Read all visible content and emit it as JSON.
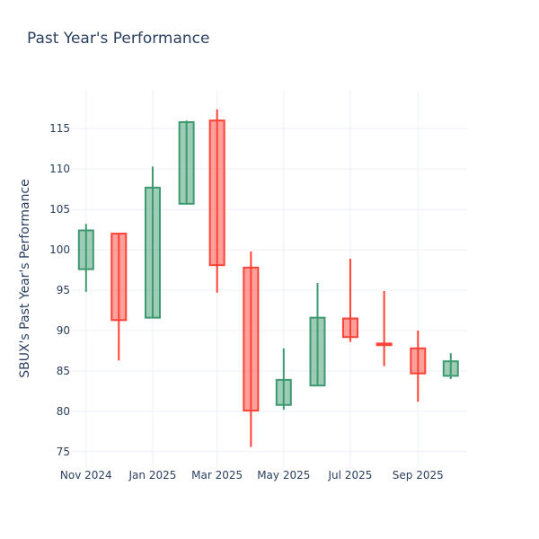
{
  "chart_data": {
    "type": "candlestick",
    "title": "Past Year's Performance",
    "ylabel": "SBUX's Past Year's Performance",
    "xlabel": "",
    "ylim": [
      73.1,
      119.8
    ],
    "xlim": [
      "2024-10-19",
      "2025-10-16"
    ],
    "yticks": [
      75,
      80,
      85,
      90,
      95,
      100,
      105,
      110,
      115
    ],
    "xticks": [
      {
        "date": "2024-11-01",
        "label": "Nov 2024"
      },
      {
        "date": "2025-01-01",
        "label": "Jan 2025"
      },
      {
        "date": "2025-03-01",
        "label": "Mar 2025"
      },
      {
        "date": "2025-05-01",
        "label": "May 2025"
      },
      {
        "date": "2025-07-01",
        "label": "Jul 2025"
      },
      {
        "date": "2025-09-01",
        "label": "Sep 2025"
      }
    ],
    "grid": true,
    "colors": {
      "increasing": "#3D9970",
      "decreasing": "#FF4136"
    },
    "candles": [
      {
        "date": "2024-11-01",
        "open": 97.6,
        "high": 103.2,
        "low": 94.8,
        "close": 102.4
      },
      {
        "date": "2024-12-01",
        "open": 102.0,
        "high": 102.1,
        "low": 86.3,
        "close": 91.3
      },
      {
        "date": "2025-01-01",
        "open": 91.6,
        "high": 110.3,
        "low": 91.5,
        "close": 107.7
      },
      {
        "date": "2025-02-01",
        "open": 105.7,
        "high": 116.0,
        "low": 105.6,
        "close": 115.8
      },
      {
        "date": "2025-03-01",
        "open": 116.0,
        "high": 117.4,
        "low": 94.7,
        "close": 98.1
      },
      {
        "date": "2025-04-01",
        "open": 97.8,
        "high": 99.8,
        "low": 75.6,
        "close": 80.1
      },
      {
        "date": "2025-05-01",
        "open": 80.8,
        "high": 87.8,
        "low": 80.2,
        "close": 83.9
      },
      {
        "date": "2025-06-01",
        "open": 83.2,
        "high": 95.9,
        "low": 83.2,
        "close": 91.6
      },
      {
        "date": "2025-07-01",
        "open": 91.5,
        "high": 98.9,
        "low": 88.6,
        "close": 89.2
      },
      {
        "date": "2025-08-01",
        "open": 88.4,
        "high": 94.9,
        "low": 85.6,
        "close": 88.2
      },
      {
        "date": "2025-09-01",
        "open": 87.8,
        "high": 90.0,
        "low": 81.2,
        "close": 84.7
      },
      {
        "date": "2025-10-01",
        "open": 84.4,
        "high": 87.2,
        "low": 84.0,
        "close": 86.2
      }
    ]
  }
}
